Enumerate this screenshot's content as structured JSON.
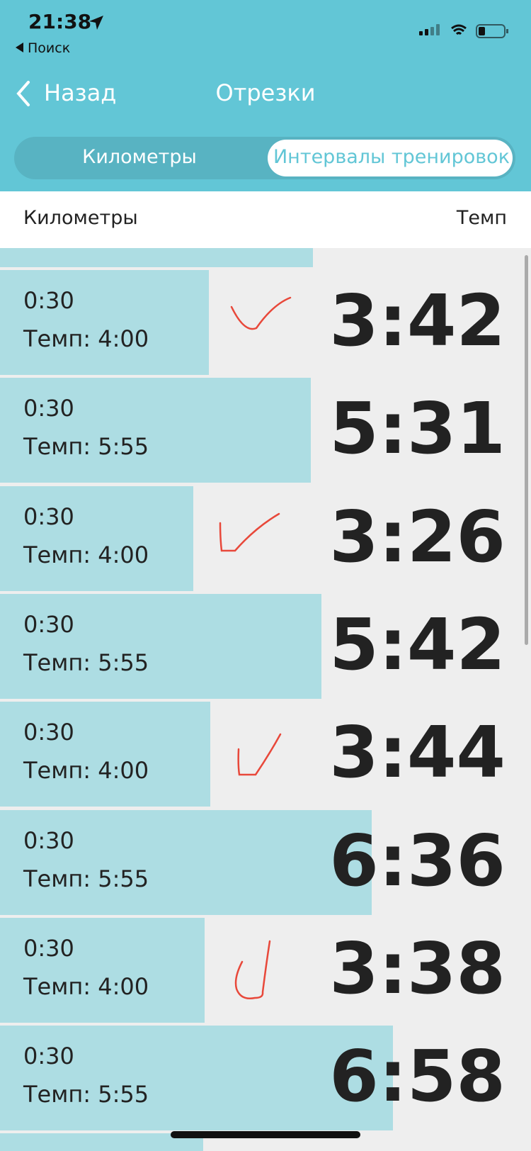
{
  "status_bar": {
    "time": "21:38",
    "back_app": "Поиск"
  },
  "nav": {
    "back": "Назад",
    "title": "Отрезки"
  },
  "segments": {
    "options": [
      "Километры",
      "Интервалы тренировок"
    ],
    "selected": 1
  },
  "table": {
    "columns": [
      "Километры",
      "Темп"
    ],
    "rows": [
      {
        "duration": "0:30",
        "target": "Темп: 4:00",
        "pace": "3:42"
      },
      {
        "duration": "0:30",
        "target": "Темп: 5:55",
        "pace": "5:31"
      },
      {
        "duration": "0:30",
        "target": "Темп: 4:00",
        "pace": "3:26"
      },
      {
        "duration": "0:30",
        "target": "Темп: 5:55",
        "pace": "5:42"
      },
      {
        "duration": "0:30",
        "target": "Темп: 4:00",
        "pace": "3:44"
      },
      {
        "duration": "0:30",
        "target": "Темп: 5:55",
        "pace": "6:36"
      },
      {
        "duration": "0:30",
        "target": "Темп: 4:00",
        "pace": "3:38"
      },
      {
        "duration": "0:30",
        "target": "Темп: 5:55",
        "pace": "6:58"
      }
    ]
  }
}
